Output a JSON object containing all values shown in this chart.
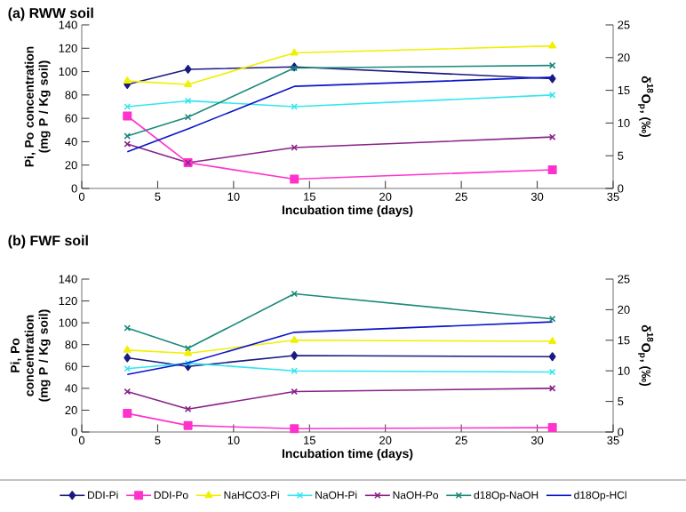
{
  "chart_data": [
    {
      "type": "line",
      "title": "(a) RWW soil",
      "xlabel": "Incubation time (days)",
      "ylabel": "Pi, Po concentration (mg P / Kg soil)",
      "y2label": "δ$^{18}$O$_{p}$, (‰)",
      "x": [
        3,
        7,
        14,
        31
      ],
      "xlim": [
        0,
        35
      ],
      "xticks": [
        0,
        5,
        10,
        15,
        20,
        25,
        30,
        35
      ],
      "ylim": [
        0,
        140
      ],
      "yticks": [
        0,
        20,
        40,
        60,
        80,
        100,
        120,
        140
      ],
      "y2lim": [
        0,
        25
      ],
      "y2ticks": [
        0,
        5,
        10,
        15,
        20,
        25
      ],
      "line_style": "solid",
      "series": [
        {
          "color": "#1a1a80",
          "marker": "diamond",
          "values": [
            89,
            102,
            104,
            94
          ]
        },
        {
          "color": "#ff33cc",
          "marker": "square",
          "values": [
            62,
            22,
            8,
            16
          ]
        },
        {
          "color": "#f0f000",
          "marker": "triangle",
          "values": [
            92,
            89,
            116,
            122
          ]
        },
        {
          "color": "#33e6f0",
          "marker": "cross",
          "values": [
            70,
            75,
            70,
            80
          ]
        },
        {
          "color": "#882288",
          "marker": "cross",
          "values": [
            38,
            22,
            35,
            44
          ]
        },
        {
          "color": "#1a8a7a",
          "marker": "cross",
          "axis": "y2",
          "values": [
            8.0,
            10.9,
            18.4,
            18.8
          ]
        },
        {
          "color": "#0a14c8",
          "marker": "none",
          "axis": "y2",
          "values": [
            5.6,
            9.1,
            15.6,
            17.0
          ]
        }
      ]
    },
    {
      "type": "line",
      "title": "(b) FWF soil",
      "xlabel": "Incubation time (days)",
      "ylabel": "Pi, Po concentration (mg P / Kg soil)",
      "y2label": "δ$^{18}$O$_{p}$, (‰)",
      "x": [
        3,
        7,
        14,
        31
      ],
      "xlim": [
        0,
        35
      ],
      "xticks": [
        0,
        5,
        10,
        15,
        20,
        25,
        30,
        35
      ],
      "ylim": [
        0,
        140
      ],
      "yticks": [
        0,
        20,
        40,
        60,
        80,
        100,
        120,
        140
      ],
      "y2lim": [
        0,
        25
      ],
      "y2ticks": [
        0,
        5,
        10,
        15,
        20,
        25
      ],
      "line_style": "solid",
      "legend": "bottom",
      "series": [
        {
          "name": "DDI-Pi",
          "color": "#1a1a80",
          "marker": "diamond",
          "values": [
            68,
            60,
            70,
            69
          ]
        },
        {
          "name": "DDI-Po",
          "color": "#ff33cc",
          "marker": "square",
          "values": [
            17,
            6,
            3,
            4
          ]
        },
        {
          "name": "NaHCO3-Pi",
          "color": "#f0f000",
          "marker": "triangle",
          "values": [
            75,
            72,
            84,
            83
          ]
        },
        {
          "name": "NaOH-Pi",
          "color": "#33e6f0",
          "marker": "cross",
          "values": [
            58,
            63,
            56,
            55
          ]
        },
        {
          "name": "NaOH-Po",
          "color": "#882288",
          "marker": "cross",
          "values": [
            37,
            21,
            37,
            40
          ]
        },
        {
          "name": "d18Op-NaOH",
          "color": "#1a8a7a",
          "marker": "cross",
          "axis": "y2",
          "values": [
            17.0,
            13.7,
            22.6,
            18.5
          ]
        },
        {
          "name": "d18Op-HCl",
          "color": "#0a14c8",
          "marker": "none",
          "axis": "y2",
          "values": [
            9.4,
            11.3,
            16.3,
            18.0
          ]
        }
      ]
    }
  ]
}
